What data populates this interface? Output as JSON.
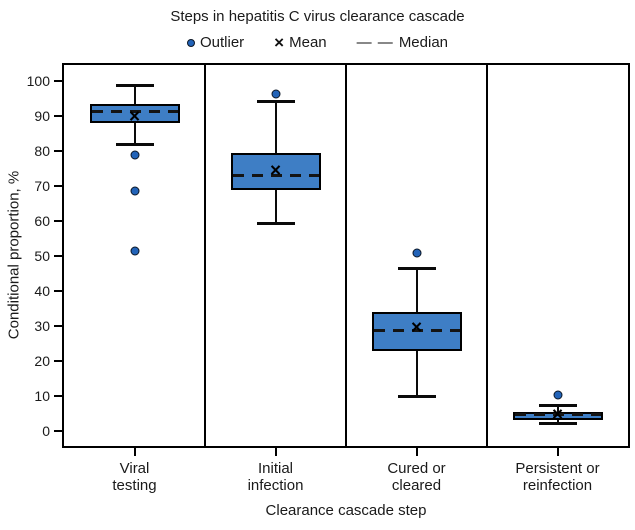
{
  "title": "Steps in hepatitis C virus clearance cascade",
  "legend": {
    "outlier_label": "Outlier",
    "mean_label": "Mean",
    "median_label": "Median",
    "mean_glyph": "×",
    "median_glyph": "— —"
  },
  "colors": {
    "box_fill": "#3e7ec5",
    "outlier_fill": "#2263b8",
    "line": "#000000",
    "text": "#1a1a1a"
  },
  "chart_data": {
    "type": "boxplot",
    "title": "Steps in hepatitis C virus clearance cascade",
    "xlabel": "Clearance cascade step",
    "ylabel": "Conditional proportion, %",
    "ylim": [
      0,
      100
    ],
    "ytick_step": 10,
    "ytick_labels": [
      "0",
      "10",
      "20",
      "30",
      "40",
      "50",
      "60",
      "70",
      "80",
      "90",
      "100"
    ],
    "grid": false,
    "legend_position": "top",
    "categories": [
      "Viral testing",
      "Initial infection",
      "Cured or cleared",
      "Persistent or reinfection"
    ],
    "categories_display": [
      [
        "Viral",
        "testing"
      ],
      [
        "Initial",
        "infection"
      ],
      [
        "Cured or",
        "cleared"
      ],
      [
        "Persistent or",
        "reinfection"
      ]
    ],
    "series": [
      {
        "category": "Viral testing",
        "whisker_low": 82,
        "q1": 88,
        "median": 91.5,
        "mean": 89.5,
        "q3": 93.5,
        "whisker_high": 99,
        "outliers": [
          79,
          68.5,
          51.5
        ]
      },
      {
        "category": "Initial infection",
        "whisker_low": 59.5,
        "q1": 69,
        "median": 73,
        "mean": 74,
        "q3": 79.5,
        "whisker_high": 94.5,
        "outliers": [
          96.5
        ]
      },
      {
        "category": "Cured or cleared",
        "whisker_low": 10,
        "q1": 23,
        "median": 28.7,
        "mean": 29.1,
        "q3": 34,
        "whisker_high": 46.5,
        "outliers": [
          51
        ]
      },
      {
        "category": "Persistent or reinfection",
        "whisker_low": 2.4,
        "q1": 3.2,
        "median": 4.6,
        "mean": 4.4,
        "q3": 5.3,
        "whisker_high": 7.4,
        "outliers": [
          10.3
        ]
      }
    ]
  }
}
